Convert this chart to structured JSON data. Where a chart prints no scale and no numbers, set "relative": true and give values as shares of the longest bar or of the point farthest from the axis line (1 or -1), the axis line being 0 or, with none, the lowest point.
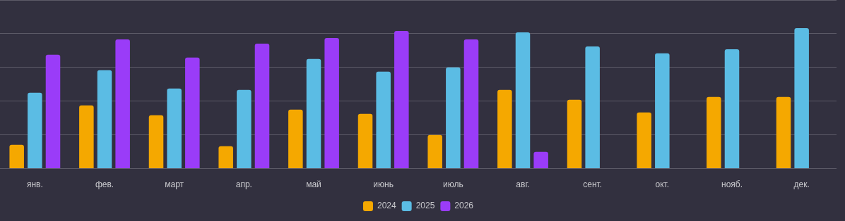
{
  "chart_data": {
    "type": "bar",
    "relative": true,
    "grid": "y",
    "legend": "bottom",
    "categories": [
      "янв.",
      "фев.",
      "март",
      "апр.",
      "май",
      "июнь",
      "июль",
      "авг.",
      "сент.",
      "окт.",
      "нояб.",
      "дек."
    ],
    "series": [
      {
        "name": "2024",
        "color": "#f5a800",
        "values": [
          0.17,
          0.45,
          0.38,
          0.16,
          0.42,
          0.39,
          0.24,
          0.56,
          0.49,
          0.4,
          0.51,
          0.51
        ]
      },
      {
        "name": "2025",
        "color": "#5bbce4",
        "values": [
          0.54,
          0.7,
          0.57,
          0.56,
          0.78,
          0.69,
          0.72,
          0.97,
          0.87,
          0.82,
          0.85,
          1
        ]
      },
      {
        "name": "2026",
        "color": "#9a3cf8",
        "values": [
          0.81,
          0.92,
          0.79,
          0.89,
          0.93,
          0.98,
          0.92,
          0.12,
          null,
          null,
          null,
          null
        ]
      }
    ]
  }
}
